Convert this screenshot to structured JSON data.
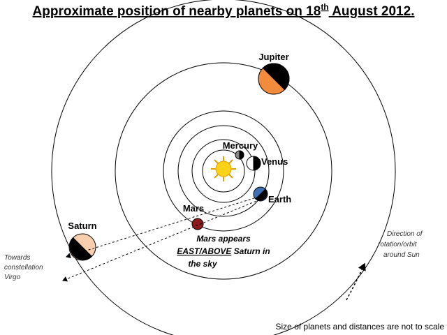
{
  "title": {
    "main": "Approximate position of nearby planets on 18",
    "sup": "th",
    "rest": " August 2012."
  },
  "planets": {
    "jupiter": "Jupiter",
    "mercury": "Mercury",
    "venus": "Venus",
    "earth": "Earth",
    "mars": "Mars",
    "saturn": "Saturn"
  },
  "note": {
    "line1": "Mars appears",
    "emph": "EAST/ABOVE",
    "line2rest": " Saturn in",
    "line3": "the sky"
  },
  "direction_target": [
    "Towards",
    "constellation",
    "Virgo"
  ],
  "rotation": [
    "Direction of",
    "rotation/orbit",
    "around Sun"
  ],
  "footer": "Size of planets and distances are not to scale"
}
